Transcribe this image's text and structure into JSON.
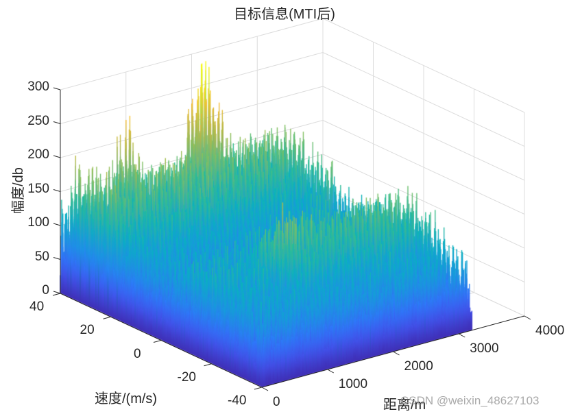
{
  "figure": {
    "title": "目标信息(MTI后)",
    "watermark": "CSDN @weixin_48627103"
  },
  "axes": {
    "xlabel": "距离/m",
    "ylabel": "速度/(m/s)",
    "zlabel": "幅度/db"
  },
  "colors": {
    "text": "#262626",
    "axis_line": "#262626",
    "grid": "#dcdcdc",
    "background": "#ffffff",
    "colormap": "parula",
    "parula_stops": [
      "#3e26a8",
      "#4352ec",
      "#2c7dfd",
      "#149fdb",
      "#07b4bd",
      "#33c08d",
      "#89c25c",
      "#ccba3a",
      "#fbbd2f",
      "#f9e21d",
      "#f9fb0e"
    ]
  },
  "chart_data": {
    "type": "surface",
    "title": "目标信息(MTI后)",
    "xlabel": "距离/m",
    "ylabel": "速度/(m/s)",
    "zlabel": "幅度/db",
    "x_ticks": [
      0,
      1000,
      2000,
      3000,
      4000
    ],
    "y_ticks": [
      40,
      20,
      0,
      -20,
      -40
    ],
    "z_ticks": [
      0,
      50,
      100,
      150,
      200,
      250,
      300
    ],
    "xlim": [
      0,
      4000
    ],
    "ylim": [
      -40,
      40
    ],
    "zlim": [
      0,
      300
    ],
    "grid": true,
    "data_extent": {
      "x_range_m": [
        0,
        3200
      ],
      "y_range_mps": [
        -40,
        40
      ]
    },
    "description": "Range-Doppler map after MTI filtering; noisy surface with baseline ~30-120 dB and sidelobe ridges ~150-230 dB; strongest peaks near range≈1600-2000 m at velocities around 20 to 30 m/s reaching ~290 dB; second elevated region at velocity ≈ -10 to -30 m/s, range ≈ 1000-3000 m with peaks ~180-210 dB.",
    "approx_peaks": [
      {
        "x": 1900,
        "y": 35,
        "z": 290
      },
      {
        "x": 2100,
        "y": 35,
        "z": 270
      },
      {
        "x": 900,
        "y": 38,
        "z": 250
      },
      {
        "x": 2900,
        "y": 10,
        "z": 210
      },
      {
        "x": 2400,
        "y": 0,
        "z": 195
      },
      {
        "x": 1200,
        "y": -20,
        "z": 175
      },
      {
        "x": 200,
        "y": 38,
        "z": 195
      }
    ],
    "noise_floor_db": 30,
    "typical_level_db": 130
  }
}
